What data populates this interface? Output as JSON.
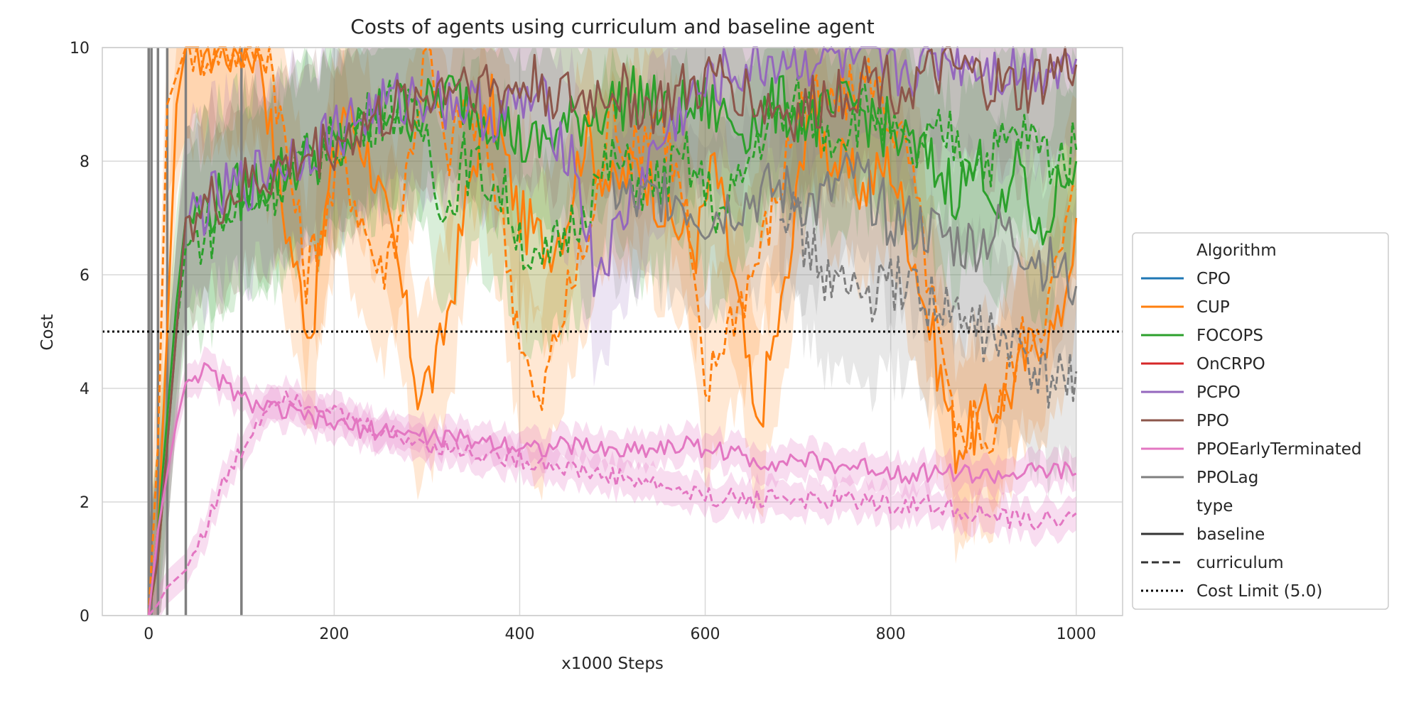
{
  "chart_data": {
    "type": "line",
    "title": "Costs of agents using curriculum and baseline agent",
    "xlabel": "x1000 Steps",
    "ylabel": "Cost",
    "xlim": [
      -50,
      1050
    ],
    "ylim": [
      0,
      10
    ],
    "x_ticks": [
      0,
      200,
      400,
      600,
      800,
      1000
    ],
    "y_ticks": [
      0,
      2,
      4,
      6,
      8,
      10
    ],
    "grid": true,
    "legend_placement": "right-center, outside",
    "legend": {
      "algorithm_header": "Algorithm",
      "type_header": "type",
      "algorithms": [
        {
          "name": "CPO",
          "color": "#1f77b4"
        },
        {
          "name": "CUP",
          "color": "#ff7f0e"
        },
        {
          "name": "FOCOPS",
          "color": "#2ca02c"
        },
        {
          "name": "OnCRPO",
          "color": "#d62728"
        },
        {
          "name": "PCPO",
          "color": "#9467bd"
        },
        {
          "name": "PPO",
          "color": "#8c564b"
        },
        {
          "name": "PPOEarlyTerminated",
          "color": "#e377c2"
        },
        {
          "name": "PPOLag",
          "color": "#7f7f7f"
        }
      ],
      "types": [
        {
          "name": "baseline",
          "dash": "solid"
        },
        {
          "name": "curriculum",
          "dash": "dashed"
        },
        {
          "name": "Cost Limit (5.0)",
          "dash": "dotted"
        }
      ]
    },
    "cost_limit": 5.0,
    "vertical_lines_x": [
      0,
      3,
      10,
      20,
      40,
      100
    ],
    "series": [
      {
        "algorithm": "CUP",
        "type": "baseline",
        "x": [
          0,
          10,
          20,
          30,
          40,
          120,
          140,
          160,
          175,
          190,
          210,
          240,
          270,
          290,
          310,
          330,
          350,
          370,
          400,
          430,
          450,
          470,
          500,
          530,
          560,
          590,
          610,
          640,
          655,
          670,
          690,
          710,
          740,
          770,
          800,
          830,
          850,
          870,
          890,
          910,
          930,
          960,
          980,
          1000
        ],
        "y": [
          0,
          1.5,
          5,
          9,
          10,
          10,
          7.5,
          6,
          5,
          7,
          9,
          8,
          6,
          4,
          4.3,
          6,
          8,
          9,
          7,
          6.5,
          7,
          8.5,
          7.5,
          8,
          7,
          6.5,
          8,
          5,
          3.2,
          4.5,
          6,
          9,
          8,
          7.5,
          8,
          6,
          4.5,
          3,
          3.3,
          3.7,
          4,
          5,
          5,
          7
        ]
      },
      {
        "algorithm": "CUP",
        "type": "curriculum",
        "x": [
          0,
          10,
          20,
          30,
          40,
          130,
          150,
          170,
          190,
          210,
          250,
          270,
          300,
          320,
          340,
          370,
          390,
          400,
          420,
          440,
          460,
          480,
          500,
          520,
          550,
          580,
          600,
          620,
          650,
          680,
          700,
          740,
          780,
          820,
          850,
          870,
          890,
          910,
          930,
          950,
          970,
          1000
        ],
        "y": [
          0,
          3,
          9,
          9.5,
          10,
          10,
          8,
          6,
          7,
          8,
          6,
          7,
          10,
          8,
          9,
          8,
          6,
          5,
          3.5,
          5,
          6,
          7,
          9,
          8,
          9,
          7,
          3.8,
          5,
          6,
          7.5,
          9,
          9,
          9.5,
          8,
          5,
          3,
          3.5,
          3,
          4.5,
          5,
          5.5,
          7.5
        ]
      },
      {
        "algorithm": "FOCOPS",
        "type": "baseline",
        "x": [
          0,
          10,
          20,
          30,
          40,
          230,
          260,
          290,
          320,
          350,
          380,
          410,
          440,
          470,
          500,
          530,
          560,
          600,
          640,
          680,
          720,
          760,
          800,
          840,
          870,
          900,
          920,
          940,
          960,
          980,
          1000
        ],
        "y": [
          0,
          1.5,
          3.5,
          5.5,
          7,
          8.5,
          9,
          8.8,
          9.2,
          9,
          8.7,
          8.2,
          8.5,
          8.8,
          9,
          9.2,
          8.8,
          9,
          8.6,
          9,
          8.7,
          9,
          8.5,
          8,
          7.5,
          8,
          7,
          8,
          6.5,
          7.5,
          8
        ]
      },
      {
        "algorithm": "FOCOPS",
        "type": "curriculum",
        "x": [
          0,
          10,
          20,
          30,
          40,
          260,
          300,
          320,
          340,
          380,
          420,
          440,
          460,
          500,
          540,
          580,
          620,
          660,
          700,
          740,
          780,
          820,
          860,
          900,
          940,
          980,
          1000
        ],
        "y": [
          0,
          1,
          3,
          5,
          6.5,
          9,
          8.5,
          7,
          8,
          7.5,
          6,
          6.5,
          7,
          8,
          7.5,
          8,
          7,
          8.5,
          9,
          8.5,
          9,
          8,
          8.5,
          8,
          8.5,
          8,
          8.2
        ]
      },
      {
        "algorithm": "PCPO",
        "type": "baseline",
        "x": [
          0,
          10,
          20,
          30,
          40,
          230,
          260,
          300,
          340,
          380,
          420,
          460,
          480,
          500,
          540,
          580,
          620,
          680,
          740,
          800,
          860,
          920,
          980,
          1000
        ],
        "y": [
          0,
          1.2,
          3,
          5,
          7,
          8.8,
          9,
          9.2,
          9,
          8.8,
          9.1,
          8,
          6,
          6.5,
          8,
          9,
          9.5,
          9.8,
          9.8,
          9.5,
          9.9,
          9.6,
          9.7,
          9.8
        ]
      },
      {
        "algorithm": "PPO",
        "type": "baseline",
        "x": [
          0,
          10,
          20,
          30,
          40,
          340,
          380,
          420,
          460,
          500,
          540,
          580,
          620,
          660,
          700,
          740,
          780,
          820,
          860,
          900,
          940,
          980,
          1000
        ],
        "y": [
          0,
          1,
          3,
          5,
          7,
          9.5,
          9.2,
          9.4,
          9,
          9.3,
          8.9,
          9.2,
          9.5,
          9,
          8.8,
          9.2,
          9.5,
          9.3,
          9.6,
          9.4,
          9.2,
          9.6,
          9.7
        ]
      },
      {
        "algorithm": "PPOEarlyTerminated",
        "type": "baseline",
        "x": [
          0,
          10,
          20,
          30,
          40,
          50,
          60,
          80,
          100,
          140,
          180,
          220,
          260,
          300,
          340,
          380,
          420,
          460,
          500,
          540,
          580,
          620,
          660,
          700,
          740,
          780,
          820,
          860,
          900,
          940,
          980,
          1000
        ],
        "y": [
          0,
          1.5,
          2.5,
          3.4,
          4.1,
          4.25,
          4.3,
          4.1,
          3.8,
          3.6,
          3.45,
          3.3,
          3.25,
          3.15,
          3.1,
          3.05,
          2.95,
          3,
          2.9,
          2.95,
          3,
          2.9,
          2.7,
          2.75,
          2.65,
          2.6,
          2.5,
          2.55,
          2.45,
          2.5,
          2.55,
          2.5
        ]
      },
      {
        "algorithm": "PPOEarlyTerminated",
        "type": "curriculum",
        "x": [
          0,
          10,
          20,
          40,
          60,
          80,
          100,
          120,
          140,
          160,
          200,
          240,
          280,
          320,
          360,
          400,
          440,
          480,
          520,
          560,
          600,
          640,
          680,
          720,
          760,
          800,
          840,
          880,
          920,
          960,
          1000
        ],
        "y": [
          0,
          0.2,
          0.5,
          0.8,
          1.5,
          2.3,
          2.9,
          3.5,
          3.9,
          3.85,
          3.55,
          3.3,
          3.1,
          2.95,
          2.85,
          2.75,
          2.65,
          2.5,
          2.4,
          2.25,
          2.1,
          2.05,
          2.1,
          2,
          2.05,
          1.95,
          1.95,
          1.85,
          1.7,
          1.65,
          1.8
        ]
      },
      {
        "algorithm": "PPOLag",
        "type": "baseline",
        "x": [
          500,
          530,
          560,
          600,
          640,
          680,
          720,
          760,
          800,
          840,
          880,
          920,
          960,
          1000
        ],
        "y": [
          7.5,
          7.2,
          7.5,
          7,
          7.3,
          7.5,
          7.2,
          7.8,
          7,
          6.8,
          6.5,
          6.8,
          6.3,
          5.8
        ]
      },
      {
        "algorithm": "PPOLag",
        "type": "curriculum",
        "x": [
          680,
          710,
          740,
          780,
          820,
          860,
          900,
          940,
          970,
          990,
          1000
        ],
        "y": [
          7.5,
          6.5,
          5.8,
          5.6,
          5.9,
          5.3,
          5,
          4.6,
          4,
          4.3,
          4.3
        ]
      }
    ]
  }
}
